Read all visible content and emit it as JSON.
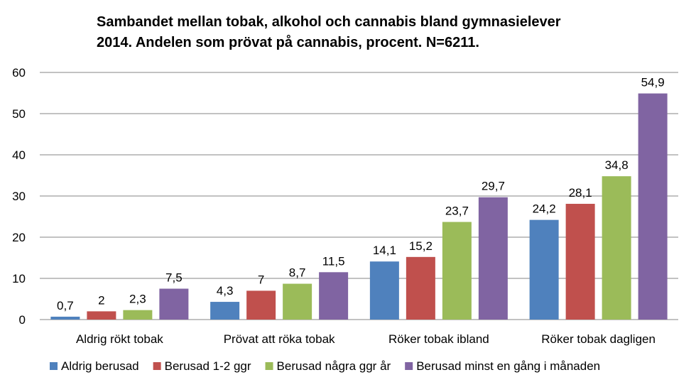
{
  "chart_data": {
    "type": "bar",
    "title_lines": [
      "Sambandet mellan tobak, alkohol och cannabis bland gymnasielever",
      "2014. Andelen som prövat på cannabis, procent. N=6211."
    ],
    "categories": [
      "Aldrig rökt tobak",
      "Prövat att röka tobak",
      "Röker tobak ibland",
      "Röker tobak dagligen"
    ],
    "series": [
      {
        "name": "Aldrig berusad",
        "color": "#4F81BD",
        "values": [
          0.7,
          4.3,
          14.1,
          24.2
        ],
        "labels": [
          "0,7",
          "4,3",
          "14,1",
          "24,2"
        ]
      },
      {
        "name": "Berusad 1-2 ggr",
        "color": "#C0504D",
        "values": [
          2,
          7,
          15.2,
          28.1
        ],
        "labels": [
          "2",
          "7",
          "15,2",
          "28,1"
        ]
      },
      {
        "name": "Berusad några ggr år",
        "color": "#9BBB59",
        "values": [
          2.3,
          8.7,
          23.7,
          34.8
        ],
        "labels": [
          "2,3",
          "8,7",
          "23,7",
          "34,8"
        ]
      },
      {
        "name": "Berusad minst en gång i månaden",
        "color": "#8064A2",
        "values": [
          7.5,
          11.5,
          29.7,
          54.9
        ],
        "labels": [
          "7,5",
          "11,5",
          "29,7",
          "54,9"
        ]
      }
    ],
    "ylim": [
      0,
      60
    ],
    "yticks": [
      "0",
      "10",
      "20",
      "30",
      "40",
      "50",
      "60"
    ],
    "grid": true,
    "legend_position": "bottom",
    "gridline_color": "#868686"
  }
}
